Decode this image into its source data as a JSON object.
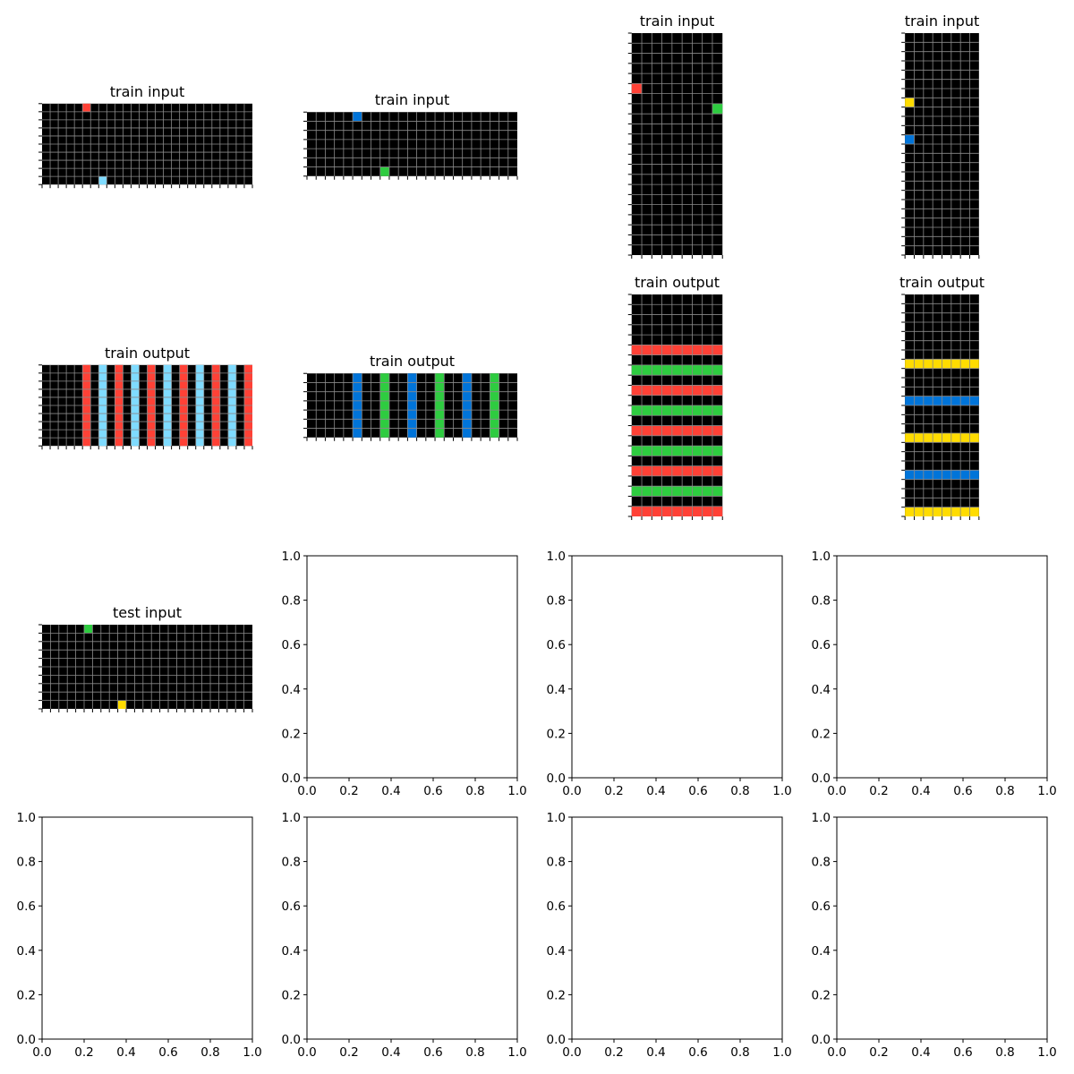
{
  "figure": {
    "palette": {
      "0": "#000000",
      "1": "#0074D9",
      "2": "#FF4136",
      "3": "#2ECC40",
      "4": "#FFDC00",
      "8": "#7FDBFF"
    },
    "grid_line_color": "#8a8a8a",
    "panels": [
      {
        "title": "train input",
        "kind": "grid",
        "rows": 10,
        "cols": 26,
        "cells": [
          [
            0,
            5,
            2
          ],
          [
            9,
            7,
            8
          ]
        ]
      },
      {
        "title": "train input",
        "kind": "grid",
        "rows": 7,
        "cols": 23,
        "cells": [
          [
            0,
            5,
            1
          ],
          [
            6,
            8,
            3
          ]
        ]
      },
      {
        "title": "train input",
        "kind": "grid",
        "rows": 22,
        "cols": 9,
        "cells": [
          [
            5,
            0,
            2
          ],
          [
            7,
            8,
            3
          ]
        ]
      },
      {
        "title": "train input",
        "kind": "grid",
        "rows": 24,
        "cols": 8,
        "cells": [
          [
            7,
            0,
            4
          ],
          [
            11,
            0,
            1
          ]
        ]
      },
      {
        "title": "train output",
        "kind": "grid",
        "rows": 10,
        "cols": 26,
        "col_fill": {
          "5": 2,
          "7": 8,
          "9": 2,
          "11": 8,
          "13": 2,
          "15": 8,
          "17": 2,
          "19": 8,
          "21": 2,
          "23": 8,
          "25": 2
        }
      },
      {
        "title": "train output",
        "kind": "grid",
        "rows": 7,
        "cols": 23,
        "col_fill": {
          "5": 1,
          "8": 3,
          "11": 1,
          "14": 3,
          "17": 1,
          "20": 3
        }
      },
      {
        "title": "train output",
        "kind": "grid",
        "rows": 22,
        "cols": 9,
        "row_fill": {
          "5": 2,
          "7": 3,
          "9": 2,
          "11": 3,
          "13": 2,
          "15": 3,
          "17": 2,
          "19": 3,
          "21": 2
        }
      },
      {
        "title": "train output",
        "kind": "grid",
        "rows": 24,
        "cols": 8,
        "row_fill": {
          "7": 4,
          "11": 1,
          "15": 4,
          "19": 1,
          "23": 4
        }
      },
      {
        "title": "test input",
        "kind": "grid",
        "rows": 10,
        "cols": 25,
        "cells": [
          [
            0,
            5,
            3
          ],
          [
            9,
            9,
            4
          ]
        ]
      },
      {
        "title": "",
        "kind": "empty"
      },
      {
        "title": "",
        "kind": "empty"
      },
      {
        "title": "",
        "kind": "empty"
      },
      {
        "title": "",
        "kind": "empty"
      },
      {
        "title": "",
        "kind": "empty"
      },
      {
        "title": "",
        "kind": "empty"
      },
      {
        "title": "",
        "kind": "empty"
      }
    ],
    "empty_axis_ticks": [
      "0.0",
      "0.2",
      "0.4",
      "0.6",
      "0.8",
      "1.0"
    ]
  }
}
